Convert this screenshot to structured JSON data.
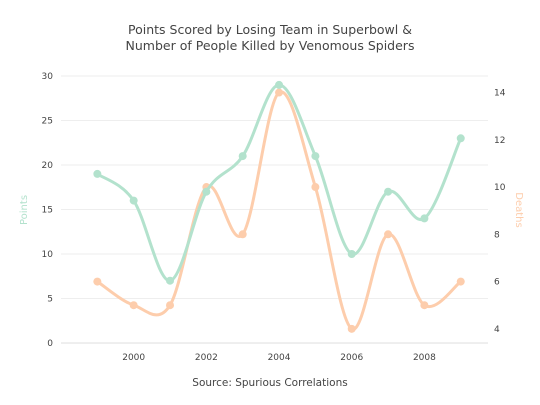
{
  "chart_data": {
    "type": "line",
    "title": [
      "Points Scored by Losing Team in Superbowl &",
      "Number of People Killed by Venomous Spiders"
    ],
    "x": [
      1999,
      2000,
      2001,
      2002,
      2003,
      2004,
      2005,
      2006,
      2007,
      2008,
      2009
    ],
    "xticks": [
      "2000",
      "2002",
      "2004",
      "2006",
      "2008"
    ],
    "xlim": [
      1998.0,
      2009.75
    ],
    "series": [
      {
        "name": "Points",
        "axis": "left",
        "color": "#b3e2cd",
        "values": [
          19,
          16,
          7,
          17,
          21,
          29,
          21,
          10,
          17,
          14,
          23
        ]
      },
      {
        "name": "Deaths",
        "axis": "right",
        "color": "#fdcdac",
        "values": [
          6,
          5,
          5,
          10,
          8,
          14,
          10,
          4,
          8,
          5,
          6
        ]
      }
    ],
    "ylabel_left": "Points",
    "ylabel_right": "Deaths",
    "yticks_left": [
      "0",
      "5",
      "10",
      "15",
      "20",
      "25",
      "30"
    ],
    "ylim_left": [
      0,
      30
    ],
    "yticks_right": [
      "4",
      "6",
      "8",
      "10",
      "12",
      "14"
    ],
    "ylim_right": [
      3.4,
      14.7
    ],
    "grid": true,
    "caption": "Source: Spurious Correlations"
  }
}
